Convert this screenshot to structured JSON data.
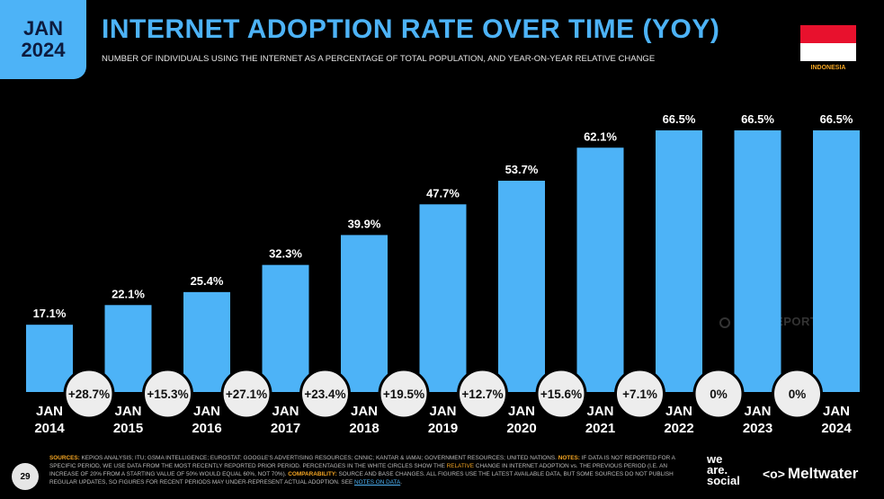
{
  "badge": {
    "month": "JAN",
    "year": "2024"
  },
  "title": "INTERNET ADOPTION RATE OVER TIME (YOY)",
  "subtitle": "NUMBER OF INDIVIDUALS USING THE INTERNET AS A PERCENTAGE OF TOTAL POPULATION, AND YEAR-ON-YEAR RELATIVE CHANGE",
  "country": "INDONESIA",
  "watermark": "DATAREPORTAL",
  "colors": {
    "bar": "#4db3f7",
    "background": "#000000",
    "accent": "#f5a623",
    "flag_red": "#e8112d"
  },
  "chart_data": {
    "type": "bar",
    "categories": [
      "JAN 2014",
      "JAN 2015",
      "JAN 2016",
      "JAN 2017",
      "JAN 2018",
      "JAN 2019",
      "JAN 2020",
      "JAN 2021",
      "JAN 2022",
      "JAN 2023",
      "JAN 2024"
    ],
    "values": [
      17.1,
      22.1,
      25.4,
      32.3,
      39.9,
      47.7,
      53.7,
      62.1,
      66.5,
      66.5,
      66.5
    ],
    "value_labels": [
      "17.1%",
      "22.1%",
      "25.4%",
      "32.3%",
      "39.9%",
      "47.7%",
      "53.7%",
      "62.1%",
      "66.5%",
      "66.5%",
      "66.5%"
    ],
    "yoy_change": [
      "+28.7%",
      "+15.3%",
      "+27.1%",
      "+23.4%",
      "+19.5%",
      "+12.7%",
      "+15.6%",
      "+7.1%",
      "0%",
      "0%"
    ],
    "ylim": [
      0,
      66.5
    ]
  },
  "footer": {
    "sources_label": "SOURCES:",
    "sources_text": " KEPIOS ANALYSIS; ITU; GSMA INTELLIGENCE; EUROSTAT; GOOGLE'S ADVERTISING RESOURCES; CNNIC; KANTAR & IAMAI; GOVERNMENT RESOURCES; UNITED NATIONS. ",
    "notes_label": "NOTES:",
    "notes_text_1": " IF DATA IS NOT REPORTED FOR A SPECIFIC PERIOD, WE USE DATA FROM THE MOST RECENTLY REPORTED PRIOR PERIOD. PERCENTAGES IN THE WHITE CIRCLES SHOW THE ",
    "relative": "RELATIVE",
    "notes_text_2": " CHANGE IN INTERNET ADOPTION vs. THE PREVIOUS PERIOD (I.E. AN INCREASE OF 20% FROM A STARTING VALUE OF 50% WOULD EQUAL 60%, NOT 70%). ",
    "comparability_label": "COMPARABILITY:",
    "comparability_text": " SOURCE AND BASE CHANGES. ALL FIGURES USE THE LATEST AVAILABLE DATA, BUT SOME SOURCES DO NOT PUBLISH REGULAR UPDATES, SO FIGURES FOR RECENT PERIODS MAY UNDER-REPRESENT ACTUAL ADOPTION. SEE ",
    "notes_link": "NOTES ON DATA",
    "period": "."
  },
  "page_number": "29",
  "logos": {
    "was_1": "we",
    "was_2": "are.",
    "was_3": "social",
    "meltwater": "Meltwater",
    "meltwater_icon": "meltwater-logo-icon"
  }
}
